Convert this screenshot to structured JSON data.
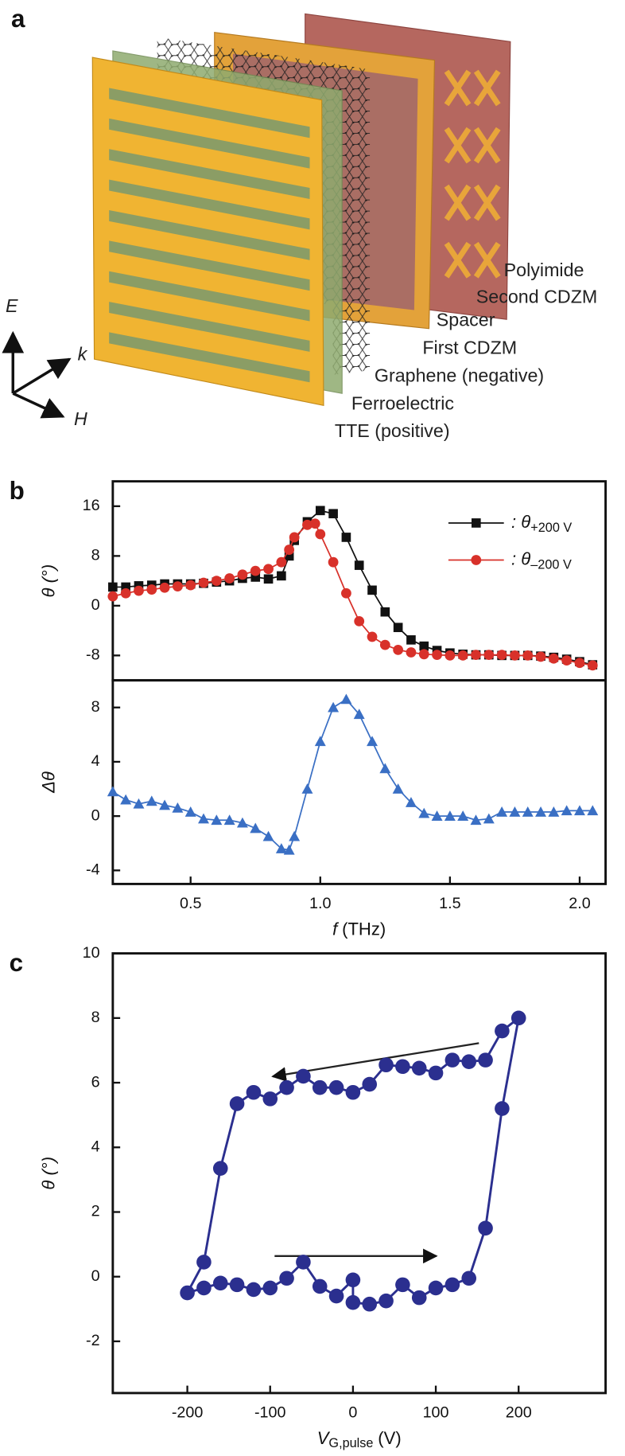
{
  "diagram": {
    "panel_label": "a",
    "labels": [
      "Polyimide",
      "Second CDZM",
      "Spacer",
      "First CDZM",
      "Graphene (negative)",
      "Ferroelectric",
      "TTE (positive)"
    ],
    "axes": [
      "E",
      "k",
      "H"
    ]
  },
  "chart_data": [
    {
      "type": "line",
      "panel_label": "b",
      "y_label": "θ (°)",
      "xlim": [
        0.2,
        2.1
      ],
      "ylim": [
        -12,
        20
      ],
      "yticks": [
        -8,
        0,
        8,
        16
      ],
      "legend": "upper right",
      "series": [
        {
          "name": ": θ",
          "name_subscript": "+200 V",
          "color": "#111111",
          "marker": "square",
          "x": [
            0.2,
            0.25,
            0.3,
            0.35,
            0.4,
            0.45,
            0.5,
            0.55,
            0.6,
            0.65,
            0.7,
            0.75,
            0.8,
            0.85,
            0.88,
            0.9,
            0.95,
            1.0,
            1.05,
            1.1,
            1.15,
            1.2,
            1.25,
            1.3,
            1.35,
            1.4,
            1.45,
            1.5,
            1.55,
            1.6,
            1.65,
            1.7,
            1.75,
            1.8,
            1.85,
            1.9,
            1.95,
            2.0,
            2.05
          ],
          "values": [
            3,
            3,
            3.2,
            3.3,
            3.5,
            3.5,
            3.5,
            3.6,
            3.8,
            4,
            4.4,
            4.6,
            4.3,
            4.8,
            8,
            10.5,
            13.5,
            15.3,
            14.8,
            11,
            6.5,
            2.5,
            -1,
            -3.5,
            -5.5,
            -6.5,
            -7.2,
            -7.6,
            -7.8,
            -7.9,
            -7.9,
            -8,
            -8,
            -8,
            -8.1,
            -8.3,
            -8.6,
            -9,
            -9.5
          ]
        },
        {
          "name": ": θ",
          "name_subscript": "–200 V",
          "color": "#d8312a",
          "marker": "circle",
          "x": [
            0.2,
            0.25,
            0.3,
            0.35,
            0.4,
            0.45,
            0.5,
            0.55,
            0.6,
            0.65,
            0.7,
            0.75,
            0.8,
            0.85,
            0.88,
            0.9,
            0.95,
            0.98,
            1.0,
            1.05,
            1.1,
            1.15,
            1.2,
            1.25,
            1.3,
            1.35,
            1.4,
            1.45,
            1.5,
            1.55,
            1.6,
            1.65,
            1.7,
            1.75,
            1.8,
            1.85,
            1.9,
            1.95,
            2.0,
            2.05
          ],
          "values": [
            1.5,
            2,
            2.4,
            2.6,
            2.9,
            3.1,
            3.3,
            3.7,
            4,
            4.4,
            5,
            5.6,
            5.9,
            7,
            9,
            11,
            13,
            13.2,
            11.5,
            7,
            2,
            -2.5,
            -5,
            -6.3,
            -7.1,
            -7.5,
            -7.8,
            -7.9,
            -8,
            -8,
            -7.9,
            -7.9,
            -7.9,
            -8,
            -8,
            -8.2,
            -8.5,
            -8.8,
            -9.2,
            -9.6
          ]
        }
      ]
    },
    {
      "type": "line",
      "y_label": "Δθ",
      "x_label": {
        "main": "f",
        "unit": "(THz)"
      },
      "xlim": [
        0.2,
        2.1
      ],
      "ylim": [
        -5,
        10
      ],
      "xticks": [
        0.5,
        {
          "value": 1,
          "label": "1.0"
        },
        1.5,
        {
          "value": 2,
          "label": "2.0"
        }
      ],
      "yticks": [
        -4,
        0,
        4,
        8
      ],
      "series": [
        {
          "color": "#3a6fc4",
          "marker": "triangle",
          "x": [
            0.2,
            0.25,
            0.3,
            0.35,
            0.4,
            0.45,
            0.5,
            0.55,
            0.6,
            0.65,
            0.7,
            0.75,
            0.8,
            0.85,
            0.88,
            0.9,
            0.95,
            1.0,
            1.05,
            1.1,
            1.15,
            1.2,
            1.25,
            1.3,
            1.35,
            1.4,
            1.45,
            1.5,
            1.55,
            1.6,
            1.65,
            1.7,
            1.75,
            1.8,
            1.85,
            1.9,
            1.95,
            2.0,
            2.05
          ],
          "values": [
            1.8,
            1.2,
            0.9,
            1.1,
            0.8,
            0.6,
            0.3,
            -0.2,
            -0.3,
            -0.3,
            -0.5,
            -0.9,
            -1.5,
            -2.4,
            -2.5,
            -1.5,
            2,
            5.5,
            8,
            8.6,
            7.5,
            5.5,
            3.5,
            2,
            1,
            0.2,
            0,
            0,
            0,
            -0.3,
            -0.2,
            0.3,
            0.3,
            0.3,
            0.3,
            0.3,
            0.4,
            0.4,
            0.4
          ]
        }
      ]
    },
    {
      "type": "line",
      "panel_label": "c",
      "y_label": "θ (°)",
      "x_label": {
        "main": "V",
        "sub": "G,pulse",
        "unit": "(V)"
      },
      "xlim": [
        -290,
        305
      ],
      "ylim": [
        -3.6,
        10
      ],
      "closed": true,
      "xticks": [
        -200,
        -100,
        0,
        100,
        200
      ],
      "yticks": [
        -2,
        0,
        2,
        4,
        6,
        8,
        10
      ],
      "series": [
        {
          "color": "#2b2f8f",
          "marker": "circle",
          "x": [
            -200,
            -180,
            -160,
            -140,
            -120,
            -100,
            -80,
            -60,
            -40,
            -20,
            0,
            0,
            20,
            40,
            60,
            80,
            100,
            120,
            140,
            160,
            180,
            200,
            180,
            160,
            140,
            120,
            100,
            80,
            60,
            40,
            20,
            0,
            -20,
            -40,
            -60,
            -80,
            -100,
            -120,
            -140,
            -160,
            -180
          ],
          "values": [
            -0.5,
            -0.35,
            -0.2,
            -0.25,
            -0.4,
            -0.35,
            -0.05,
            0.45,
            -0.3,
            -0.6,
            -0.1,
            -0.8,
            -0.85,
            -0.75,
            -0.25,
            -0.65,
            -0.35,
            -0.25,
            -0.05,
            1.5,
            5.2,
            8,
            7.6,
            6.7,
            6.65,
            6.7,
            6.3,
            6.45,
            6.5,
            6.55,
            5.95,
            5.7,
            5.85,
            5.85,
            6.2,
            5.85,
            5.5,
            5.7,
            5.35,
            3.35,
            0.45
          ]
        }
      ]
    }
  ]
}
